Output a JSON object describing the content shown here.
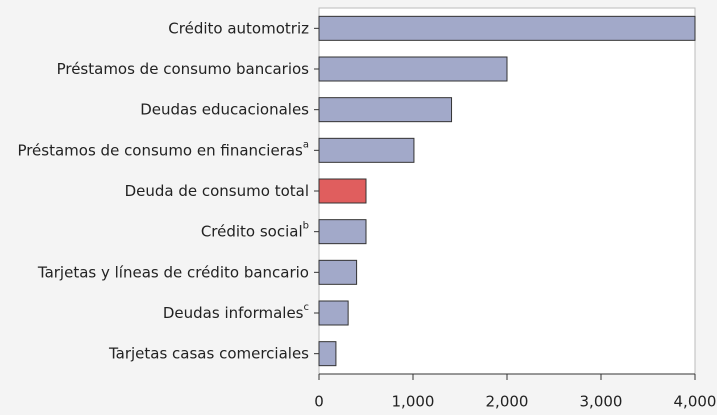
{
  "chart_data": {
    "type": "barh",
    "categories": [
      "Crédito automotriz",
      "Préstamos de consumo bancarios",
      "Deudas educacionales",
      "Préstamos de consumo en financieras",
      "Deuda de consumo total",
      "Crédito social",
      "Tarjetas y líneas de crédito bancario",
      "Deudas informales",
      "Tarjetas casas comerciales"
    ],
    "category_superscripts": [
      null,
      null,
      null,
      "a",
      null,
      "b",
      null,
      "c",
      null
    ],
    "values": [
      4000,
      2000,
      1410,
      1010,
      500,
      500,
      400,
      310,
      180
    ],
    "colors": [
      "#a2a9c9",
      "#a2a9c9",
      "#a2a9c9",
      "#a2a9c9",
      "#e05e5e",
      "#a2a9c9",
      "#a2a9c9",
      "#a2a9c9",
      "#a2a9c9"
    ],
    "xlim": [
      0,
      4000
    ],
    "xticks": [
      0,
      {
        "value": 1000,
        "label": "1,000"
      },
      {
        "value": 2000,
        "label": "2,000"
      },
      {
        "value": 3000,
        "label": "3,000"
      },
      {
        "value": 4000,
        "label": "4,000"
      }
    ]
  }
}
